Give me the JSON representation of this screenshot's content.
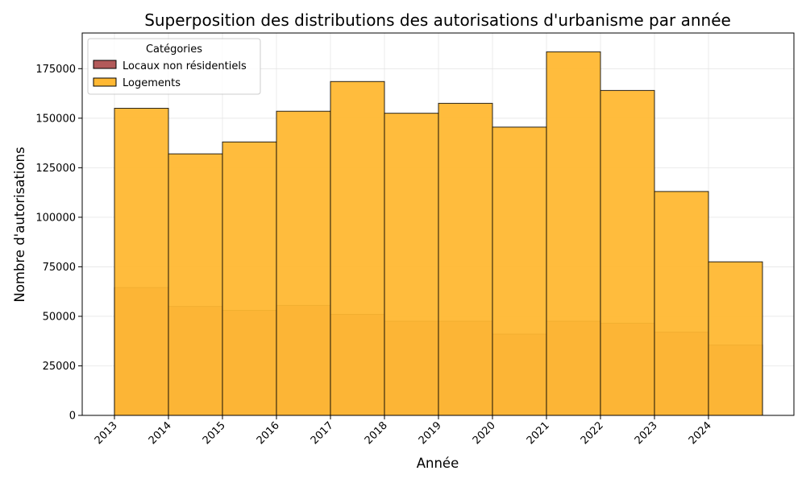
{
  "chart_data": {
    "type": "bar",
    "title": "Superposition des distributions des autorisations d'urbanisme par année",
    "xlabel": "Année",
    "ylabel": "Nombre d'autorisations",
    "categories": [
      "2013",
      "2014",
      "2015",
      "2016",
      "2017",
      "2018",
      "2019",
      "2020",
      "2021",
      "2022",
      "2023",
      "2024"
    ],
    "ylim": [
      0,
      193000
    ],
    "yticks": [
      0,
      25000,
      50000,
      75000,
      100000,
      125000,
      150000,
      175000
    ],
    "grid": true,
    "legend": {
      "title": "Catégories",
      "placement": "top-left"
    },
    "series": [
      {
        "name": "Locaux non résidentiels",
        "color": "#b35a5a",
        "values": [
          64500,
          55000,
          53000,
          55500,
          51000,
          47500,
          47500,
          41000,
          47500,
          46500,
          42000,
          35500
        ]
      },
      {
        "name": "Logements",
        "color": "#ffb833",
        "values": [
          155000,
          132000,
          138000,
          153500,
          168500,
          152500,
          157500,
          145500,
          183500,
          164000,
          113000,
          77500
        ]
      }
    ]
  }
}
